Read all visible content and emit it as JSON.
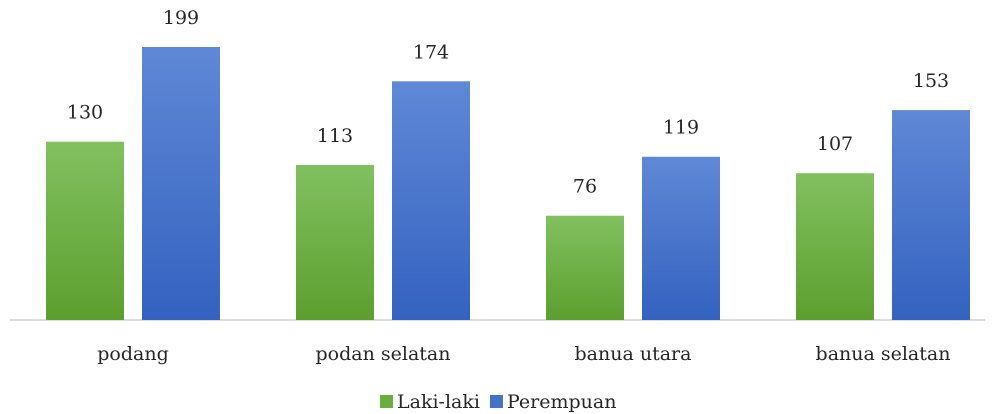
{
  "chart_data": {
    "type": "bar",
    "categories": [
      "podang",
      "podan selatan",
      "banua utara",
      "banua selatan"
    ],
    "series": [
      {
        "name": "Laki-laki",
        "color": "#6aaf3d",
        "values": [
          130,
          113,
          76,
          107
        ]
      },
      {
        "name": "Perempuan",
        "color": "#4472c4",
        "values": [
          199,
          174,
          119,
          153
        ]
      }
    ]
  }
}
